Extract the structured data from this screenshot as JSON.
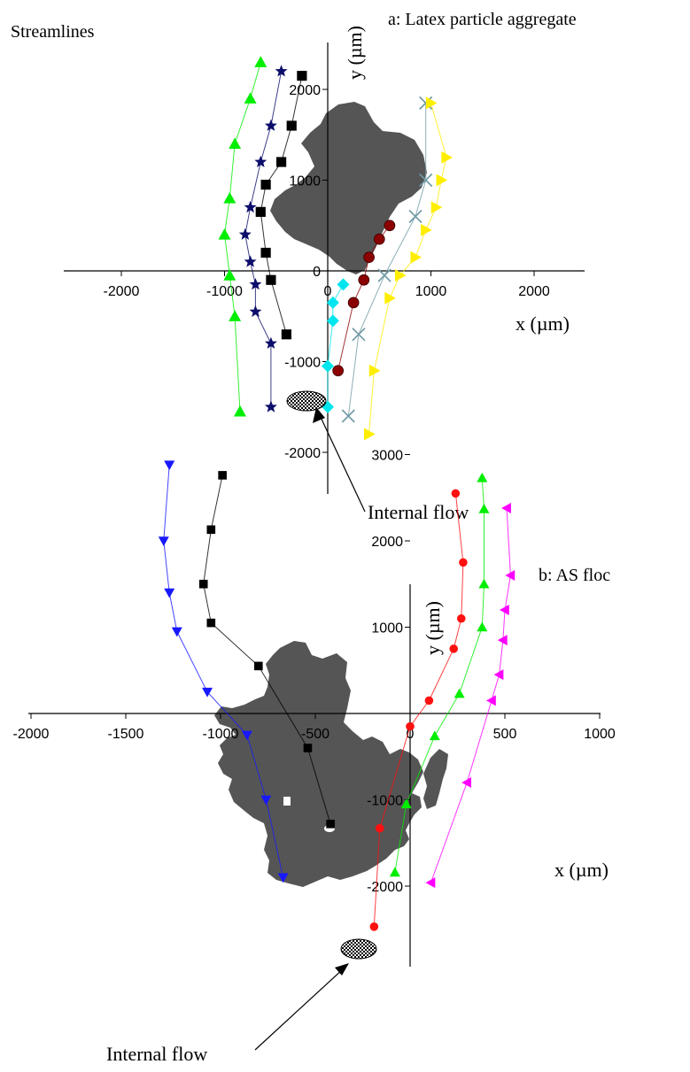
{
  "header": {
    "title": "Streamlines"
  },
  "colors": {
    "green": "#00ee00",
    "navy": "#0d0d6b",
    "black": "#000000",
    "maroon": "#8b0000",
    "cyan": "#00e5ee",
    "gray_blue": "#6f9aa5",
    "yellow": "#ffee00",
    "blue": "#1818ff",
    "red": "#ff1010",
    "magenta": "#ff00ff",
    "aggregate": "#555555"
  },
  "chart_data": [
    {
      "type": "line",
      "title": "a: Latex particle aggregate",
      "xlabel": "x (µm)",
      "ylabel": "y (µm)",
      "xlim": [
        -2500,
        2500
      ],
      "ylim": [
        -2500,
        2500
      ],
      "xticks": [
        -2000,
        -1000,
        0,
        1000,
        2000
      ],
      "yticks": [
        -2000,
        -1000,
        0,
        1000,
        2000
      ],
      "annotation": "Internal flow",
      "series": [
        {
          "color_key": "green",
          "marker": "triangle-up",
          "points": [
            [
              -650,
              2300
            ],
            [
              -750,
              1900
            ],
            [
              -900,
              1400
            ],
            [
              -950,
              800
            ],
            [
              -1000,
              400
            ],
            [
              -950,
              -50
            ],
            [
              -900,
              -500
            ],
            [
              -850,
              -1550
            ]
          ]
        },
        {
          "color_key": "navy",
          "marker": "star",
          "points": [
            [
              -450,
              2200
            ],
            [
              -550,
              1600
            ],
            [
              -650,
              1200
            ],
            [
              -750,
              700
            ],
            [
              -800,
              400
            ],
            [
              -750,
              100
            ],
            [
              -700,
              -150
            ],
            [
              -700,
              -450
            ],
            [
              -550,
              -800
            ],
            [
              -550,
              -1500
            ]
          ]
        },
        {
          "color_key": "black",
          "marker": "square",
          "points": [
            [
              -250,
              2150
            ],
            [
              -350,
              1600
            ],
            [
              -450,
              1200
            ],
            [
              -600,
              950
            ],
            [
              -650,
              650
            ],
            [
              -600,
              200
            ],
            [
              -550,
              -100
            ],
            [
              -400,
              -700
            ]
          ]
        },
        {
          "color_key": "maroon",
          "marker": "sphere",
          "points": [
            [
              600,
              500
            ],
            [
              500,
              350
            ],
            [
              400,
              150
            ],
            [
              350,
              -100
            ],
            [
              250,
              -350
            ],
            [
              100,
              -1100
            ]
          ]
        },
        {
          "color_key": "cyan",
          "marker": "diamond",
          "points": [
            [
              150,
              -150
            ],
            [
              50,
              -350
            ],
            [
              50,
              -550
            ],
            [
              0,
              -1050
            ],
            [
              0,
              -1500
            ]
          ]
        },
        {
          "color_key": "gray_blue",
          "marker": "x",
          "points": [
            [
              950,
              1850
            ],
            [
              950,
              1000
            ],
            [
              850,
              600
            ],
            [
              550,
              -50
            ],
            [
              300,
              -700
            ],
            [
              200,
              -1600
            ]
          ]
        },
        {
          "color_key": "yellow",
          "marker": "triangle-right",
          "points": [
            [
              1000,
              1850
            ],
            [
              1150,
              1250
            ],
            [
              1100,
              1000
            ],
            [
              1050,
              700
            ],
            [
              950,
              450
            ],
            [
              850,
              150
            ],
            [
              700,
              -50
            ],
            [
              600,
              -300
            ],
            [
              450,
              -1100
            ],
            [
              400,
              -1800
            ]
          ]
        }
      ]
    },
    {
      "type": "line",
      "title": "b: AS floc",
      "xlabel": "x (µm)",
      "ylabel": "y (µm)",
      "xlim": [
        -2000,
        1000
      ],
      "ylim": [
        -2700,
        3000
      ],
      "xticks": [
        -2000,
        -1500,
        -1000,
        -500,
        0,
        500,
        1000
      ],
      "yticks": [
        -2000,
        -1000,
        0,
        1000,
        2000,
        3000
      ],
      "annotation": "Internal flow",
      "series": [
        {
          "color_key": "blue",
          "marker": "triangle-down",
          "points": [
            [
              -1270,
              2880
            ],
            [
              -1300,
              2000
            ],
            [
              -1270,
              1400
            ],
            [
              -1230,
              950
            ],
            [
              -1070,
              250
            ],
            [
              -860,
              -250
            ],
            [
              -760,
              -1000
            ],
            [
              -670,
              -1900
            ]
          ]
        },
        {
          "color_key": "black",
          "marker": "square",
          "points": [
            [
              -990,
              2760
            ],
            [
              -1050,
              2130
            ],
            [
              -1090,
              1500
            ],
            [
              -1050,
              1050
            ],
            [
              -800,
              550
            ],
            [
              -540,
              -400
            ],
            [
              -420,
              -1280
            ]
          ]
        },
        {
          "color_key": "red",
          "marker": "circle",
          "points": [
            [
              240,
              2550
            ],
            [
              280,
              1750
            ],
            [
              270,
              1100
            ],
            [
              230,
              750
            ],
            [
              100,
              150
            ],
            [
              0,
              -150
            ],
            [
              -160,
              -1330
            ],
            [
              -190,
              -2470
            ]
          ]
        },
        {
          "color_key": "green",
          "marker": "triangle-up",
          "points": [
            [
              380,
              2730
            ],
            [
              390,
              2370
            ],
            [
              390,
              1500
            ],
            [
              380,
              1000
            ],
            [
              260,
              230
            ],
            [
              130,
              -260
            ],
            [
              -20,
              -1050
            ],
            [
              -80,
              -1840
            ]
          ]
        },
        {
          "color_key": "magenta",
          "marker": "triangle-left",
          "points": [
            [
              510,
              2380
            ],
            [
              530,
              1600
            ],
            [
              500,
              1200
            ],
            [
              490,
              850
            ],
            [
              470,
              450
            ],
            [
              430,
              150
            ],
            [
              300,
              -800
            ],
            [
              110,
              -1960
            ]
          ]
        }
      ]
    }
  ]
}
